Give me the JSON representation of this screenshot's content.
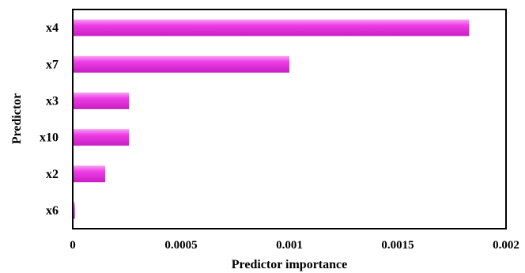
{
  "chart_data": {
    "type": "bar",
    "orientation": "horizontal",
    "title": "",
    "xlabel": "Predictor importance",
    "ylabel": "Predictor",
    "categories": [
      "x4",
      "x7",
      "x3",
      "x10",
      "x2",
      "x6"
    ],
    "values": [
      0.00183,
      0.001,
      0.00026,
      0.00026,
      0.00015,
      1e-05
    ],
    "xlim": [
      0,
      0.002
    ],
    "xticks": [
      0,
      0.0005,
      0.001,
      0.0015,
      0.002
    ],
    "xtick_labels": [
      "0",
      "0.0005",
      "0.001",
      "0.0015",
      "0.002"
    ],
    "grid": false,
    "colors": {
      "bar_main": "#ee3ee6",
      "bar_light": "#f7a3f2",
      "bar_dark": "#c81ec2",
      "frame": "#000000"
    }
  }
}
